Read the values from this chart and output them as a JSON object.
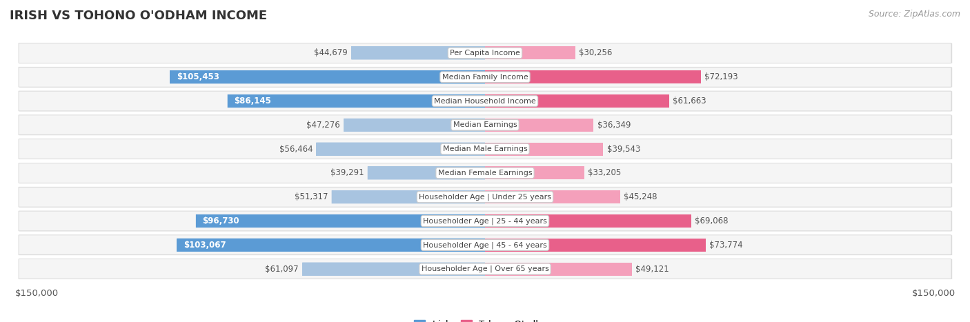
{
  "title": "IRISH VS TOHONO O'ODHAM INCOME",
  "source": "Source: ZipAtlas.com",
  "categories": [
    "Per Capita Income",
    "Median Family Income",
    "Median Household Income",
    "Median Earnings",
    "Median Male Earnings",
    "Median Female Earnings",
    "Householder Age | Under 25 years",
    "Householder Age | 25 - 44 years",
    "Householder Age | 45 - 64 years",
    "Householder Age | Over 65 years"
  ],
  "irish_values": [
    44679,
    105453,
    86145,
    47276,
    56464,
    39291,
    51317,
    96730,
    103067,
    61097
  ],
  "tohono_values": [
    30256,
    72193,
    61663,
    36349,
    39543,
    33205,
    45248,
    69068,
    73774,
    49121
  ],
  "irish_labels": [
    "$44,679",
    "$105,453",
    "$86,145",
    "$47,276",
    "$56,464",
    "$39,291",
    "$51,317",
    "$96,730",
    "$103,067",
    "$61,097"
  ],
  "tohono_labels": [
    "$30,256",
    "$72,193",
    "$61,663",
    "$36,349",
    "$39,543",
    "$33,205",
    "$45,248",
    "$69,068",
    "$73,774",
    "$49,121"
  ],
  "irish_color_light": "#a8c4e0",
  "irish_color_dark": "#5b9bd5",
  "tohono_color_light": "#f4a0bb",
  "tohono_color_dark": "#e8608a",
  "max_value": 150000,
  "xlabel_left": "$150,000",
  "xlabel_right": "$150,000",
  "bg_color": "#ffffff",
  "row_bg": "#f5f5f5",
  "row_border": "#dddddd",
  "irish_dark_threshold": 75000,
  "tohono_dark_threshold": 60000,
  "title_fontsize": 13,
  "label_fontsize": 8.5,
  "cat_fontsize": 8,
  "source_fontsize": 9,
  "legend_irish": "Irish",
  "legend_tohono": "Tohono O'odham"
}
